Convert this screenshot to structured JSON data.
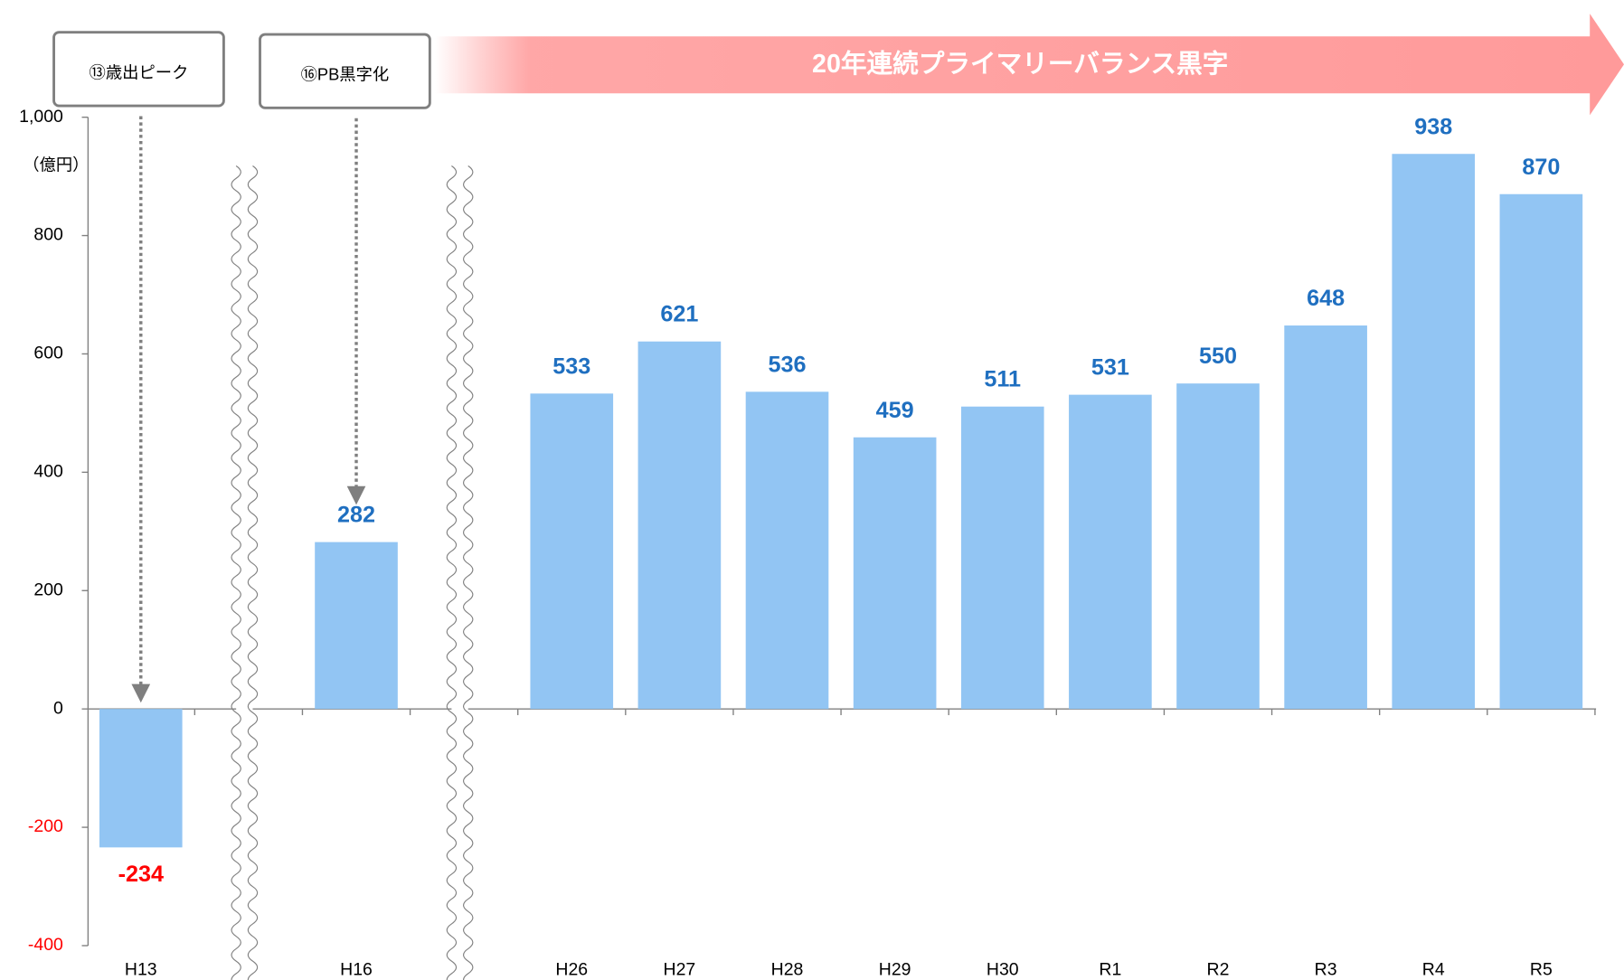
{
  "chart_data": {
    "type": "bar",
    "banner": "20年連続プライマリーバランス黒字",
    "y_unit": "（億円）",
    "annotations": [
      {
        "text": "⑬歳出ピーク",
        "category": "H13"
      },
      {
        "text": "⑯PB黒字化",
        "category": "H16"
      }
    ],
    "categories": [
      "H13",
      null,
      "H16",
      null,
      "H26",
      "H27",
      "H28",
      "H29",
      "H30",
      "R1",
      "R2",
      "R3",
      "R4",
      "R5"
    ],
    "values": [
      -234,
      null,
      282,
      null,
      533,
      621,
      536,
      459,
      511,
      531,
      550,
      648,
      938,
      870
    ],
    "color": "#92c5f3",
    "label_color": "#1f6fc0",
    "negative_color": "#ff0000",
    "ylim": [
      -400,
      1000
    ],
    "yticks": [
      -400,
      -200,
      0,
      200,
      400,
      600,
      800,
      {
        "value": 1000,
        "label": "1,000"
      }
    ],
    "grid": false
  }
}
